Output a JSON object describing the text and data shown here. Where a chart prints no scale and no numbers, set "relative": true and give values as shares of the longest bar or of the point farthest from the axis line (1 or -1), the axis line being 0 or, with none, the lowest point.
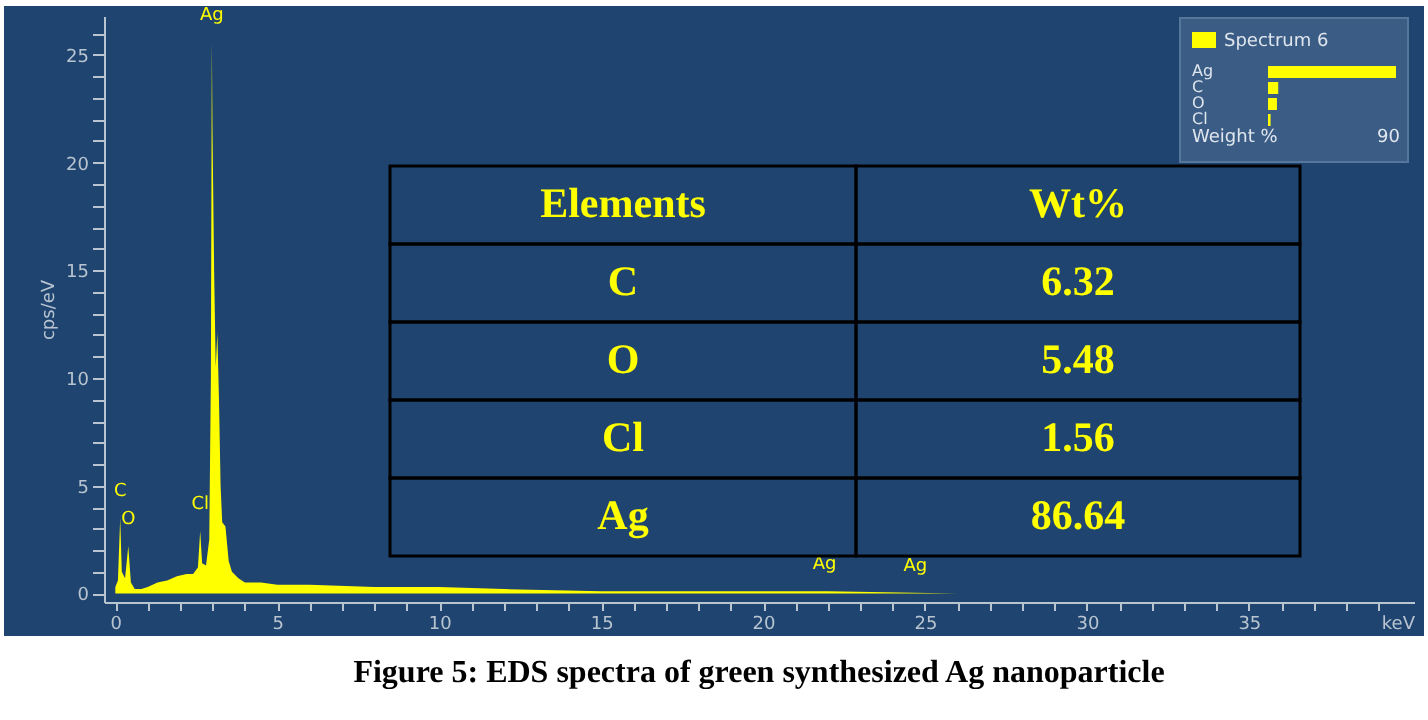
{
  "chart_data": [
    {
      "type": "area",
      "title": "Figure 5: EDS spectra of green synthesized Ag nanoparticle",
      "xlabel": "keV",
      "ylabel": "cps/eV",
      "color": "#ffff00",
      "x": [
        0,
        0.08,
        0.15,
        0.2,
        0.3,
        0.4,
        0.48,
        0.6,
        0.8,
        1.0,
        1.3,
        1.6,
        1.9,
        2.2,
        2.4,
        2.55,
        2.62,
        2.68,
        2.8,
        2.9,
        2.95,
        2.98,
        3.0,
        3.05,
        3.1,
        3.15,
        3.2,
        3.25,
        3.3,
        3.4,
        3.5,
        3.6,
        3.8,
        4.0,
        4.5,
        5,
        6,
        8,
        10,
        12,
        15,
        18,
        22,
        26,
        30,
        35,
        40
      ],
      "values": [
        0.3,
        0.6,
        3.5,
        1.0,
        0.7,
        2.2,
        0.5,
        0.2,
        0.2,
        0.3,
        0.5,
        0.6,
        0.8,
        0.9,
        0.9,
        1.2,
        2.9,
        1.4,
        1.3,
        2.5,
        10,
        25.6,
        21.5,
        15,
        10.5,
        12.1,
        9,
        5,
        3.3,
        3.1,
        1.5,
        1.0,
        0.7,
        0.5,
        0.5,
        0.4,
        0.4,
        0.3,
        0.3,
        0.2,
        0.1,
        0.1,
        0.1,
        0,
        0,
        0,
        0
      ],
      "xlim": [
        -0.35,
        40.1
      ],
      "ylim": [
        -0.4,
        26.8
      ],
      "xticks": [
        0,
        {
          "value": 1,
          "label": null
        },
        {
          "value": 2,
          "label": null
        },
        {
          "value": 3,
          "label": null
        },
        {
          "value": 4,
          "label": null
        },
        5,
        {
          "value": 6,
          "label": null
        },
        {
          "value": 7,
          "label": null
        },
        {
          "value": 8,
          "label": null
        },
        {
          "value": 9,
          "label": null
        },
        10,
        {
          "value": 11,
          "label": null
        },
        {
          "value": 12,
          "label": null
        },
        {
          "value": 13,
          "label": null
        },
        {
          "value": 14,
          "label": null
        },
        15,
        {
          "value": 16,
          "label": null
        },
        {
          "value": 17,
          "label": null
        },
        {
          "value": 18,
          "label": null
        },
        {
          "value": 19,
          "label": null
        },
        20,
        {
          "value": 21,
          "label": null
        },
        {
          "value": 22,
          "label": null
        },
        {
          "value": 23,
          "label": null
        },
        {
          "value": 24,
          "label": null
        },
        25,
        {
          "value": 26,
          "label": null
        },
        {
          "value": 27,
          "label": null
        },
        {
          "value": 28,
          "label": null
        },
        {
          "value": 29,
          "label": null
        },
        30,
        {
          "value": 31,
          "label": null
        },
        {
          "value": 32,
          "label": null
        },
        {
          "value": 33,
          "label": null
        },
        {
          "value": 34,
          "label": null
        },
        35,
        {
          "value": 36,
          "label": null
        },
        {
          "value": 37,
          "label": null
        },
        {
          "value": 38,
          "label": null
        },
        {
          "value": 39,
          "label": null
        }
      ],
      "yticks": [
        0,
        {
          "value": 1,
          "label": null
        },
        {
          "value": 2,
          "label": null
        },
        {
          "value": 3,
          "label": null
        },
        {
          "value": 4,
          "label": null
        },
        5,
        {
          "value": 6,
          "label": null
        },
        {
          "value": 7,
          "label": null
        },
        {
          "value": 8,
          "label": null
        },
        {
          "value": 9,
          "label": null
        },
        10,
        {
          "value": 11,
          "label": null
        },
        {
          "value": 12,
          "label": null
        },
        {
          "value": 13,
          "label": null
        },
        {
          "value": 14,
          "label": null
        },
        15,
        {
          "value": 16,
          "label": null
        },
        {
          "value": 17,
          "label": null
        },
        {
          "value": 18,
          "label": null
        },
        {
          "value": 19,
          "label": null
        },
        20,
        {
          "value": 21,
          "label": null
        },
        {
          "value": 22,
          "label": null
        },
        {
          "value": 23,
          "label": null
        },
        {
          "value": 24,
          "label": null
        },
        25,
        {
          "value": 26,
          "label": null
        }
      ],
      "annotations": [
        {
          "text": "C",
          "x": 0.15,
          "y": 3.5
        },
        {
          "text": "O",
          "x": 0.4,
          "y": 2.2
        },
        {
          "text": "Cl",
          "x": 2.62,
          "y": 2.9
        },
        {
          "text": "Ag",
          "x": 2.98,
          "y": 25.6
        },
        {
          "text": "Ag",
          "x": 21.9,
          "y": 0.1
        },
        {
          "text": "Ag",
          "x": 24.7,
          "y": 0
        }
      ]
    },
    {
      "type": "other",
      "categories": [
        "C",
        "O",
        "Cl",
        "Ag"
      ],
      "values": [
        6.32,
        5.48,
        1.56,
        86.64
      ],
      "data_labels": true,
      "annotations": [
        "Elements",
        "Wt%"
      ]
    },
    {
      "type": "bar",
      "orientation": "horizontal",
      "relative": true,
      "legend": "top",
      "categories": [
        "Ag",
        "C",
        "O",
        "Cl"
      ],
      "series": [
        {
          "name": "Spectrum 6",
          "color": "#ffff00",
          "values": [
            1,
            0.08,
            0.07,
            0.02
          ]
        }
      ],
      "xlabel": "Weight %",
      "annotations": [
        "90"
      ]
    }
  ]
}
